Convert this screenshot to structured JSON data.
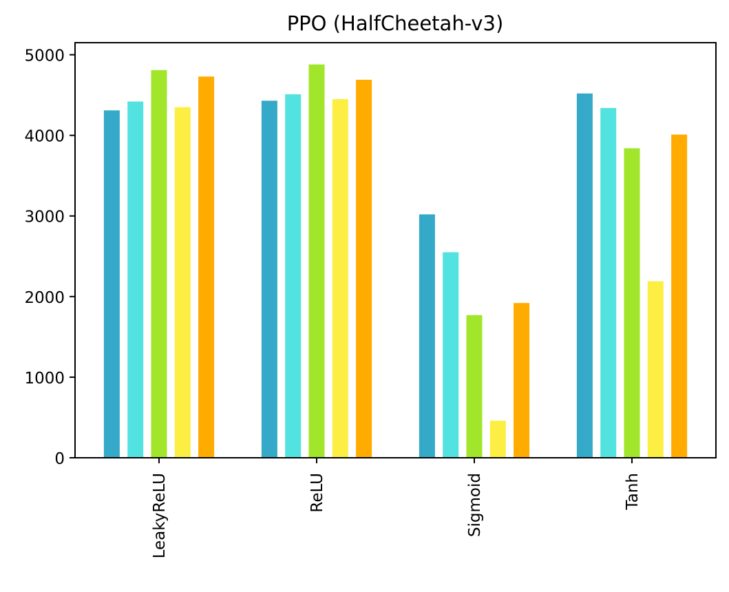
{
  "chart_data": {
    "type": "bar",
    "title": "PPO (HalfCheetah-v3)",
    "xlabel": "",
    "ylabel": "",
    "categories": [
      "LeakyReLU",
      "ReLU",
      "Sigmoid",
      "Tanh"
    ],
    "ylim": [
      0,
      5150
    ],
    "yticks": [
      0,
      1000,
      2000,
      3000,
      4000,
      5000
    ],
    "ytick_labels": [
      "0",
      "1000",
      "2000",
      "3000",
      "4000",
      "5000"
    ],
    "grid": false,
    "legend": "none",
    "series": [
      {
        "color": "#34a9c8",
        "values": [
          4310,
          4430,
          3020,
          4520
        ]
      },
      {
        "color": "#52e2e0",
        "values": [
          4420,
          4510,
          2550,
          4340
        ]
      },
      {
        "color": "#a1e62a",
        "values": [
          4810,
          4880,
          1770,
          3840
        ]
      },
      {
        "color": "#fdee43",
        "values": [
          4350,
          4450,
          460,
          2190
        ]
      },
      {
        "color": "#ffab00",
        "values": [
          4730,
          4690,
          1920,
          4010
        ]
      }
    ]
  }
}
